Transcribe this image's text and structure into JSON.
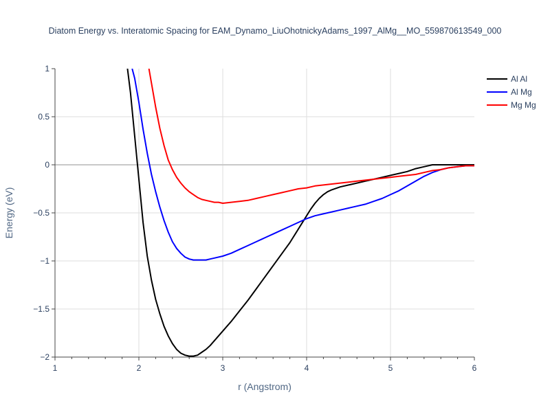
{
  "chart_data": {
    "type": "line",
    "title": "Diatom Energy vs. Interatomic Spacing for EAM_Dynamo_LiuOhotnickyAdams_1997_AlMg__MO_559870613549_000",
    "xlabel": "r (Angstrom)",
    "ylabel": "Energy (eV)",
    "xlim": [
      1,
      6
    ],
    "ylim": [
      -2,
      1
    ],
    "x_ticks": [
      "1",
      "2",
      "3",
      "4",
      "5",
      "6"
    ],
    "y_ticks": [
      "−2",
      "−1.5",
      "−1",
      "−0.5",
      "0",
      "0.5",
      "1"
    ],
    "grid": true,
    "legend_position": "top-right",
    "series": [
      {
        "name": "Al Al",
        "color": "#000000",
        "x": [
          1.85,
          1.9,
          1.95,
          2.0,
          2.05,
          2.1,
          2.15,
          2.2,
          2.25,
          2.3,
          2.35,
          2.4,
          2.45,
          2.5,
          2.55,
          2.6,
          2.65,
          2.7,
          2.75,
          2.8,
          2.85,
          2.9,
          2.95,
          3.0,
          3.1,
          3.2,
          3.3,
          3.4,
          3.5,
          3.6,
          3.7,
          3.8,
          3.9,
          4.0,
          4.05,
          4.1,
          4.15,
          4.2,
          4.25,
          4.3,
          4.4,
          4.5,
          4.6,
          4.7,
          4.8,
          4.9,
          5.0,
          5.1,
          5.2,
          5.3,
          5.4,
          5.5,
          5.55,
          5.6,
          5.7,
          5.8,
          5.9,
          6.0
        ],
        "y": [
          1.1,
          0.75,
          0.3,
          -0.15,
          -0.6,
          -0.95,
          -1.2,
          -1.4,
          -1.55,
          -1.68,
          -1.78,
          -1.86,
          -1.92,
          -1.96,
          -1.98,
          -1.99,
          -1.99,
          -1.98,
          -1.95,
          -1.92,
          -1.88,
          -1.83,
          -1.78,
          -1.73,
          -1.63,
          -1.52,
          -1.41,
          -1.29,
          -1.17,
          -1.05,
          -0.93,
          -0.81,
          -0.67,
          -0.53,
          -0.46,
          -0.4,
          -0.35,
          -0.31,
          -0.28,
          -0.26,
          -0.23,
          -0.21,
          -0.19,
          -0.17,
          -0.15,
          -0.13,
          -0.11,
          -0.09,
          -0.07,
          -0.04,
          -0.02,
          0.0,
          0.0,
          0.0,
          0.0,
          0.0,
          0.0,
          0.0
        ]
      },
      {
        "name": "Al Mg",
        "color": "#0000ff",
        "x": [
          1.92,
          1.95,
          2.0,
          2.05,
          2.1,
          2.15,
          2.2,
          2.25,
          2.3,
          2.35,
          2.4,
          2.45,
          2.5,
          2.55,
          2.6,
          2.65,
          2.7,
          2.75,
          2.8,
          2.85,
          2.9,
          3.0,
          3.1,
          3.2,
          3.3,
          3.4,
          3.5,
          3.6,
          3.7,
          3.8,
          3.9,
          4.0,
          4.1,
          4.2,
          4.3,
          4.4,
          4.5,
          4.6,
          4.7,
          4.8,
          4.9,
          5.0,
          5.1,
          5.2,
          5.3,
          5.4,
          5.5,
          5.6,
          5.7,
          5.8,
          5.9,
          6.0
        ],
        "y": [
          1.0,
          0.9,
          0.65,
          0.37,
          0.12,
          -0.1,
          -0.28,
          -0.44,
          -0.58,
          -0.7,
          -0.8,
          -0.87,
          -0.92,
          -0.96,
          -0.98,
          -0.99,
          -0.99,
          -0.99,
          -0.99,
          -0.98,
          -0.97,
          -0.95,
          -0.92,
          -0.88,
          -0.84,
          -0.8,
          -0.76,
          -0.72,
          -0.68,
          -0.64,
          -0.6,
          -0.56,
          -0.53,
          -0.51,
          -0.49,
          -0.47,
          -0.45,
          -0.43,
          -0.41,
          -0.38,
          -0.35,
          -0.31,
          -0.27,
          -0.22,
          -0.17,
          -0.12,
          -0.08,
          -0.05,
          -0.03,
          -0.02,
          -0.01,
          -0.01
        ]
      },
      {
        "name": "Mg Mg",
        "color": "#ff0000",
        "x": [
          2.12,
          2.15,
          2.2,
          2.25,
          2.3,
          2.35,
          2.4,
          2.45,
          2.5,
          2.55,
          2.6,
          2.65,
          2.7,
          2.75,
          2.8,
          2.85,
          2.9,
          2.95,
          3.0,
          3.1,
          3.2,
          3.3,
          3.4,
          3.5,
          3.6,
          3.7,
          3.8,
          3.9,
          4.0,
          4.1,
          4.2,
          4.3,
          4.4,
          4.5,
          4.6,
          4.7,
          4.8,
          4.9,
          5.0,
          5.1,
          5.2,
          5.3,
          5.4,
          5.5,
          5.6,
          5.7,
          5.8,
          5.9,
          6.0
        ],
        "y": [
          1.0,
          0.85,
          0.6,
          0.38,
          0.2,
          0.05,
          -0.05,
          -0.13,
          -0.19,
          -0.24,
          -0.28,
          -0.31,
          -0.34,
          -0.36,
          -0.37,
          -0.38,
          -0.39,
          -0.39,
          -0.4,
          -0.39,
          -0.38,
          -0.37,
          -0.35,
          -0.33,
          -0.31,
          -0.29,
          -0.27,
          -0.25,
          -0.24,
          -0.22,
          -0.21,
          -0.2,
          -0.19,
          -0.18,
          -0.17,
          -0.16,
          -0.15,
          -0.14,
          -0.13,
          -0.12,
          -0.11,
          -0.1,
          -0.08,
          -0.06,
          -0.05,
          -0.03,
          -0.02,
          -0.01,
          -0.01
        ]
      }
    ]
  }
}
